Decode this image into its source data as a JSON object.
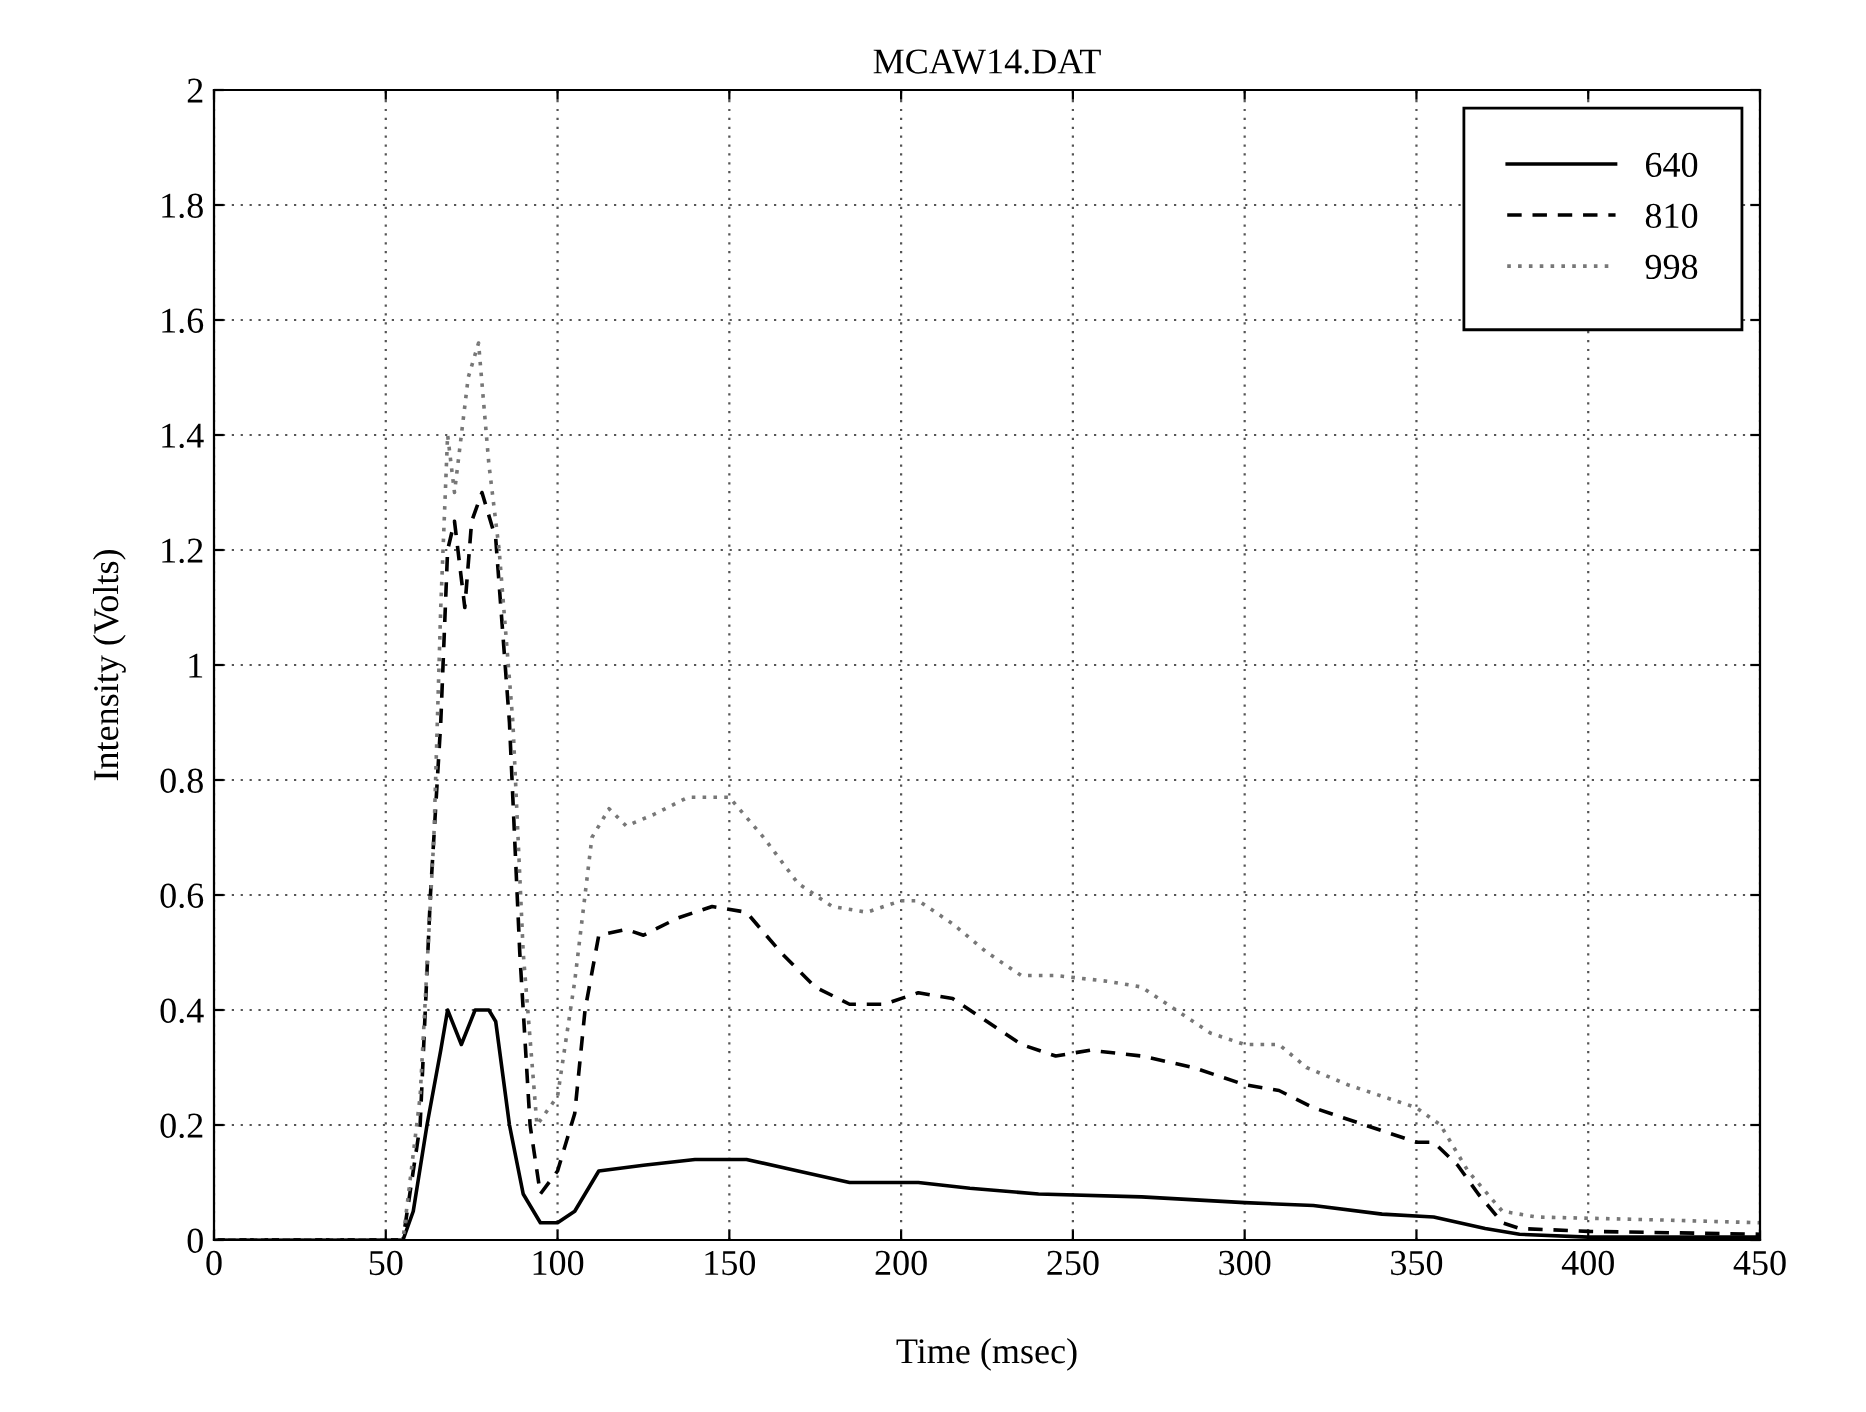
{
  "chart_data": {
    "type": "line",
    "title": "MCAW14.DAT",
    "xlabel": "Time (msec)",
    "ylabel": "Intensity (Volts)",
    "xlim": [
      0,
      450
    ],
    "ylim": [
      0,
      2
    ],
    "xticks": [
      0,
      50,
      100,
      150,
      200,
      250,
      300,
      350,
      400,
      450
    ],
    "yticks": [
      0,
      0.2,
      0.4,
      0.6,
      0.8,
      1,
      1.2,
      1.4,
      1.6,
      1.8,
      2
    ],
    "grid": true,
    "legend": "top right",
    "series": [
      {
        "name": "640",
        "color": "#000000",
        "line_style": "solid",
        "x": [
          0,
          55,
          58,
          62,
          66,
          68,
          72,
          76,
          80,
          82,
          86,
          90,
          95,
          100,
          105,
          112,
          125,
          140,
          155,
          170,
          185,
          205,
          220,
          240,
          270,
          300,
          320,
          340,
          355,
          370,
          380,
          400,
          450
        ],
        "values": [
          0,
          0,
          0.05,
          0.2,
          0.33,
          0.4,
          0.34,
          0.4,
          0.4,
          0.38,
          0.2,
          0.08,
          0.03,
          0.03,
          0.05,
          0.12,
          0.13,
          0.14,
          0.14,
          0.12,
          0.1,
          0.1,
          0.09,
          0.08,
          0.075,
          0.065,
          0.06,
          0.045,
          0.04,
          0.02,
          0.01,
          0.005,
          0.005
        ]
      },
      {
        "name": "810",
        "color": "#000000",
        "line_style": "dashed",
        "x": [
          0,
          55,
          60,
          63,
          66,
          68,
          70,
          73,
          75,
          78,
          82,
          86,
          89,
          92,
          95,
          100,
          105,
          108,
          112,
          120,
          125,
          135,
          145,
          155,
          165,
          175,
          185,
          195,
          205,
          215,
          225,
          235,
          245,
          255,
          270,
          285,
          300,
          310,
          320,
          335,
          350,
          355,
          362,
          368,
          375,
          380,
          400,
          450
        ],
        "values": [
          0,
          0,
          0.2,
          0.6,
          0.9,
          1.2,
          1.25,
          1.1,
          1.25,
          1.3,
          1.22,
          0.9,
          0.5,
          0.2,
          0.08,
          0.12,
          0.22,
          0.4,
          0.53,
          0.54,
          0.53,
          0.56,
          0.58,
          0.57,
          0.5,
          0.44,
          0.41,
          0.41,
          0.43,
          0.42,
          0.38,
          0.34,
          0.32,
          0.33,
          0.32,
          0.3,
          0.27,
          0.26,
          0.23,
          0.2,
          0.17,
          0.17,
          0.13,
          0.08,
          0.03,
          0.02,
          0.015,
          0.01
        ]
      },
      {
        "name": "998",
        "color": "#777777",
        "line_style": "dotted",
        "x": [
          0,
          55,
          60,
          64,
          66,
          68,
          70,
          74,
          77,
          80,
          83,
          87,
          90,
          94,
          100,
          105,
          110,
          115,
          120,
          128,
          138,
          150,
          160,
          170,
          180,
          190,
          200,
          205,
          215,
          225,
          235,
          245,
          260,
          270,
          280,
          290,
          300,
          310,
          318,
          330,
          345,
          350,
          357,
          365,
          375,
          385,
          420,
          450
        ],
        "values": [
          0,
          0,
          0.25,
          0.7,
          1.1,
          1.4,
          1.3,
          1.5,
          1.56,
          1.35,
          1.2,
          0.9,
          0.5,
          0.2,
          0.25,
          0.45,
          0.7,
          0.75,
          0.72,
          0.74,
          0.77,
          0.77,
          0.7,
          0.62,
          0.58,
          0.57,
          0.59,
          0.59,
          0.55,
          0.5,
          0.46,
          0.46,
          0.45,
          0.44,
          0.4,
          0.36,
          0.34,
          0.34,
          0.3,
          0.27,
          0.24,
          0.23,
          0.2,
          0.12,
          0.05,
          0.04,
          0.035,
          0.03
        ]
      }
    ]
  }
}
